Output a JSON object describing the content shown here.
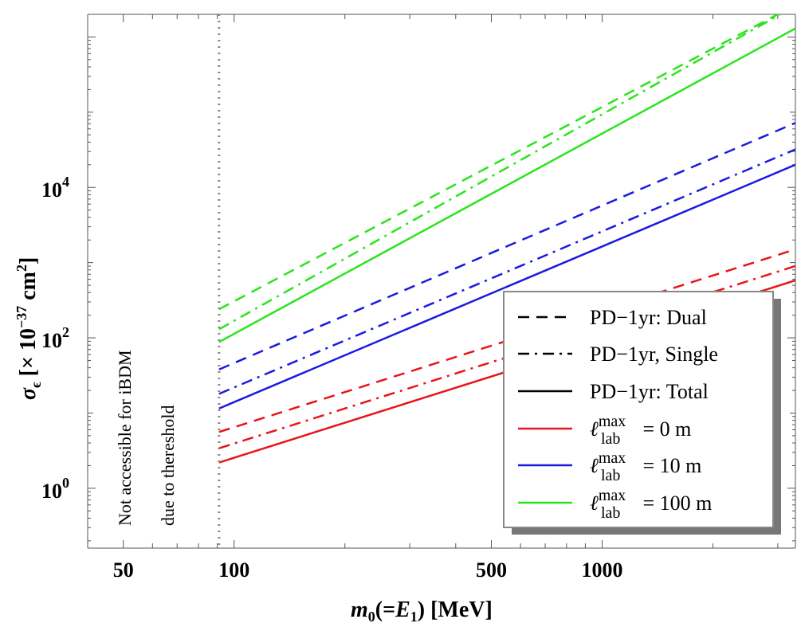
{
  "chart_data": {
    "type": "line",
    "xscale": "log",
    "yscale": "log",
    "xlim": [
      40,
      3350
    ],
    "ylim": [
      0.16,
      2000000
    ],
    "xlabel_parts": {
      "m": "m",
      "sub0": "0",
      "mid": "(=",
      "E": "E",
      "sub1": "1",
      "end": ") [MeV]"
    },
    "ylabel_parts": {
      "sigma": "σ",
      "eps": "ϵ",
      "open": " [× 10",
      "exp": "−37",
      "unit": " cm",
      "uexp": "2",
      "close": "]"
    },
    "x_ticks": [
      {
        "value": 50,
        "label": "50"
      },
      {
        "value": 100,
        "label": "100"
      },
      {
        "value": 500,
        "label": "500"
      },
      {
        "value": 1000,
        "label": "1000"
      }
    ],
    "y_ticks": [
      {
        "value": 1,
        "base": "10",
        "exp": "0"
      },
      {
        "value": 100,
        "base": "10",
        "exp": "2"
      },
      {
        "value": 10000,
        "base": "10",
        "exp": "4"
      }
    ],
    "threshold": {
      "x": 91,
      "text_line1": "Not accessible for iBDM",
      "text_line2": "due to thereshold"
    },
    "series": [
      {
        "name": "Dual, 0 m",
        "color": "#e8141b",
        "style": "dashed",
        "x": [
          91,
          3350
        ],
        "y": [
          5.6,
          1500
        ]
      },
      {
        "name": "Single, 0 m",
        "color": "#e8141b",
        "style": "dashdot",
        "x": [
          91,
          3350
        ],
        "y": [
          3.4,
          900
        ]
      },
      {
        "name": "Total, 0 m",
        "color": "#e8141b",
        "style": "solid",
        "x": [
          91,
          3350
        ],
        "y": [
          2.2,
          580
        ]
      },
      {
        "name": "Dual, 10 m",
        "color": "#1a1ae0",
        "style": "dashed",
        "x": [
          91,
          3350
        ],
        "y": [
          38,
          72000
        ]
      },
      {
        "name": "Single, 10 m",
        "color": "#1a1ae0",
        "style": "dashdot",
        "x": [
          91,
          3350
        ],
        "y": [
          18,
          32000
        ]
      },
      {
        "name": "Total, 10 m",
        "color": "#1a1ae0",
        "style": "solid",
        "x": [
          91,
          3350
        ],
        "y": [
          11.5,
          20000
        ]
      },
      {
        "name": "Dual, 100 m",
        "color": "#2ae41c",
        "style": "dashed",
        "x": [
          91,
          3000
        ],
        "y": [
          240,
          2000000
        ]
      },
      {
        "name": "Single, 100 m",
        "color": "#2ae41c",
        "style": "dashdot",
        "x": [
          91,
          3050
        ],
        "y": [
          130,
          2000000
        ]
      },
      {
        "name": "Total, 100 m",
        "color": "#2ae41c",
        "style": "solid",
        "x": [
          91,
          3350
        ],
        "y": [
          88,
          1300000
        ]
      }
    ],
    "legend": {
      "position": "bottom-right",
      "entries": [
        {
          "kind": "style",
          "style": "dashed",
          "color": "#000000",
          "label": "PD−1yr: Dual"
        },
        {
          "kind": "style",
          "style": "dashdot",
          "color": "#000000",
          "label": "PD−1yr, Single"
        },
        {
          "kind": "style",
          "style": "solid",
          "color": "#000000",
          "label": "PD−1yr: Total"
        },
        {
          "kind": "color",
          "style": "solid",
          "color": "#e8141b",
          "sym": "ℓ",
          "sup": "max",
          "sub": "lab",
          "rest": " = 0 m"
        },
        {
          "kind": "color",
          "style": "solid",
          "color": "#1a1ae0",
          "sym": "ℓ",
          "sup": "max",
          "sub": "lab",
          "rest": " = 10 m"
        },
        {
          "kind": "color",
          "style": "solid",
          "color": "#2ae41c",
          "sym": "ℓ",
          "sup": "max",
          "sub": "lab",
          "rest": " = 100 m"
        }
      ]
    }
  }
}
